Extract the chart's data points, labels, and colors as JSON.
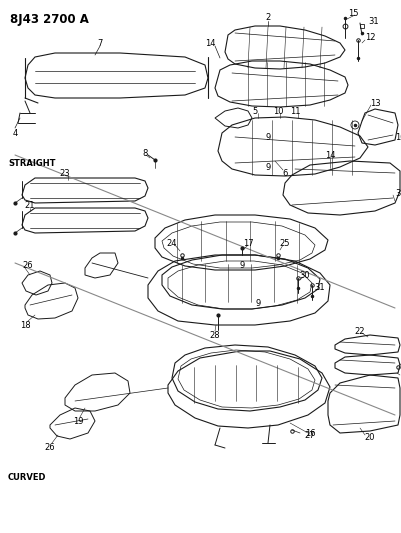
{
  "title": "8J43 2700 A",
  "label_straight": "STRAIGHT",
  "label_curved": "CURVED",
  "bg_color": "#ffffff",
  "line_color": "#1a1a1a",
  "text_color": "#000000",
  "fig_width": 4.01,
  "fig_height": 5.33,
  "dpi": 100
}
